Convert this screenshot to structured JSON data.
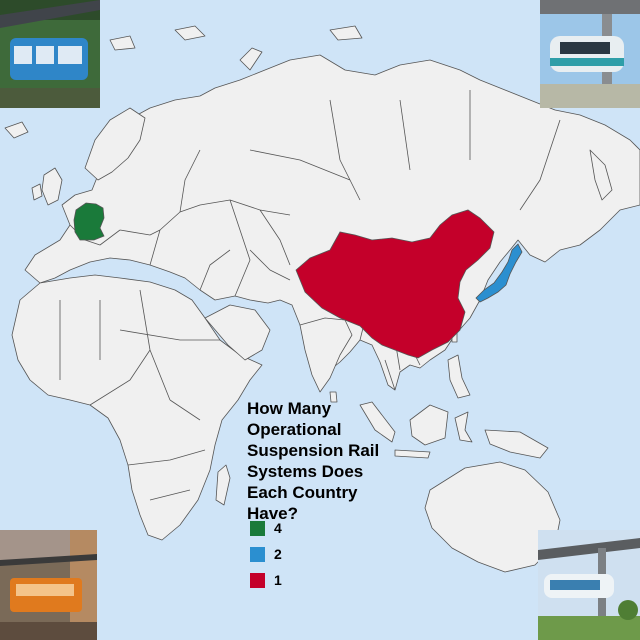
{
  "title": "How Many Operational Suspension Rail Systems Does Each Country Have?",
  "colors": {
    "ocean": "#cfe4f7",
    "land": "#f0f0f0",
    "border": "#555555"
  },
  "legend": [
    {
      "label": "4",
      "color": "#1a7a3a"
    },
    {
      "label": "2",
      "color": "#2b8fd0"
    },
    {
      "label": "1",
      "color": "#c4002a"
    }
  ],
  "countries": [
    {
      "name": "Germany",
      "systems": 4,
      "color": "#1a7a3a"
    },
    {
      "name": "Japan",
      "systems": 2,
      "color": "#2b8fd0"
    },
    {
      "name": "China",
      "systems": 1,
      "color": "#c4002a"
    }
  ],
  "photos": [
    {
      "subject": "blue suspension train under steel track"
    },
    {
      "subject": "suspended monorail beside building"
    },
    {
      "subject": "orange suspension car on street"
    },
    {
      "subject": "suspended monorail over park"
    }
  ]
}
